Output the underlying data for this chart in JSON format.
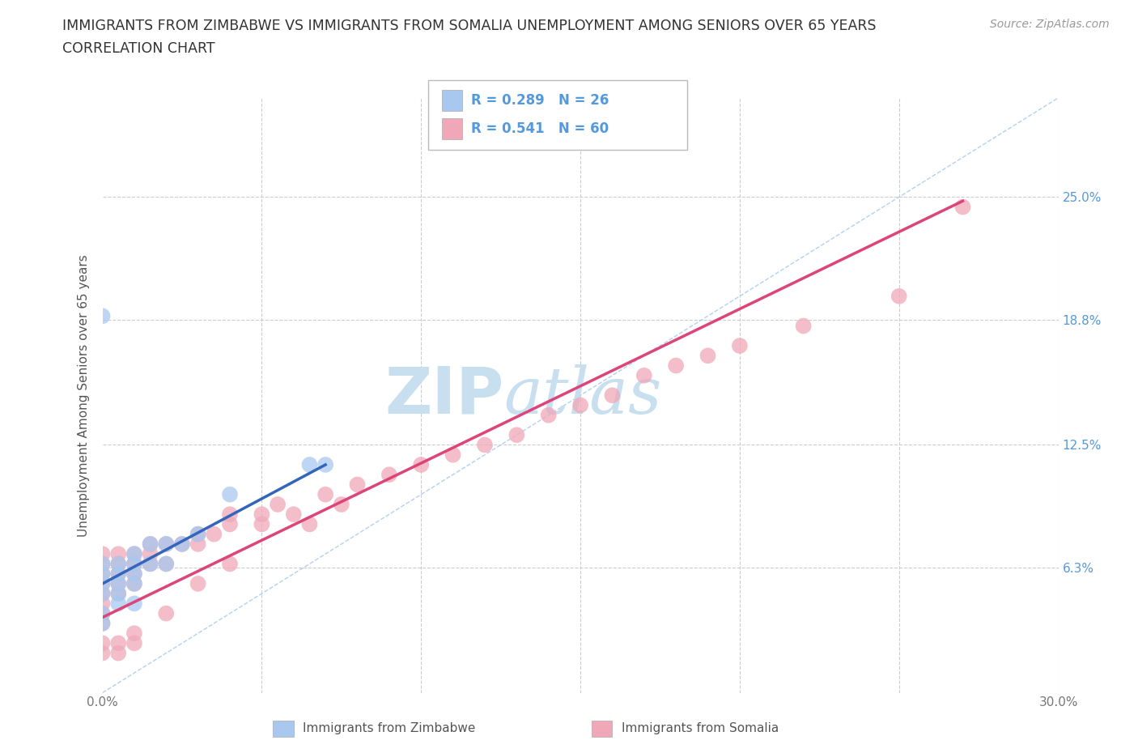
{
  "title_line1": "IMMIGRANTS FROM ZIMBABWE VS IMMIGRANTS FROM SOMALIA UNEMPLOYMENT AMONG SENIORS OVER 65 YEARS",
  "title_line2": "CORRELATION CHART",
  "source_text": "Source: ZipAtlas.com",
  "ylabel": "Unemployment Among Seniors over 65 years",
  "xlim": [
    0.0,
    0.3
  ],
  "ylim": [
    0.0,
    0.3
  ],
  "ytick_values": [
    0.0,
    0.063,
    0.125,
    0.188,
    0.25
  ],
  "ytick_labels_right": [
    "",
    "6.3%",
    "12.5%",
    "18.8%",
    "25.0%"
  ],
  "xtick_positions": [
    0.0,
    0.05,
    0.1,
    0.15,
    0.2,
    0.25,
    0.3
  ],
  "xtick_labels": [
    "0.0%",
    "",
    "",
    "",
    "",
    "",
    "30.0%"
  ],
  "grid_color": "#cccccc",
  "watermark_zip": "ZIP",
  "watermark_atlas": "atlas",
  "watermark_color": "#c8dff0",
  "legend_r1": "R = 0.289",
  "legend_n1": "N = 26",
  "legend_r2": "R = 0.541",
  "legend_n2": "N = 60",
  "color_zimbabwe": "#a8c8f0",
  "color_somalia": "#f0a8b8",
  "line_color_zimbabwe": "#3366bb",
  "line_color_somalia": "#dd4477",
  "diagonal_color": "#aaccee",
  "tick_label_color": "#5599dd",
  "zimbabwe_x": [
    0.0,
    0.0,
    0.0,
    0.0,
    0.0,
    0.005,
    0.005,
    0.005,
    0.005,
    0.01,
    0.01,
    0.01,
    0.01,
    0.015,
    0.015,
    0.02,
    0.02,
    0.025,
    0.03,
    0.04,
    0.065,
    0.07,
    0.0,
    0.005,
    0.01,
    0.0
  ],
  "zimbabwe_y": [
    0.19,
    0.065,
    0.06,
    0.055,
    0.05,
    0.065,
    0.06,
    0.055,
    0.05,
    0.07,
    0.065,
    0.06,
    0.055,
    0.075,
    0.065,
    0.075,
    0.065,
    0.075,
    0.08,
    0.1,
    0.115,
    0.115,
    0.04,
    0.045,
    0.045,
    0.035
  ],
  "somalia_x": [
    0.0,
    0.0,
    0.0,
    0.0,
    0.0,
    0.0,
    0.0,
    0.0,
    0.005,
    0.005,
    0.005,
    0.005,
    0.005,
    0.01,
    0.01,
    0.01,
    0.01,
    0.015,
    0.015,
    0.015,
    0.02,
    0.02,
    0.025,
    0.03,
    0.03,
    0.035,
    0.04,
    0.04,
    0.05,
    0.05,
    0.055,
    0.06,
    0.065,
    0.07,
    0.075,
    0.08,
    0.09,
    0.1,
    0.11,
    0.12,
    0.13,
    0.14,
    0.15,
    0.16,
    0.17,
    0.18,
    0.19,
    0.2,
    0.22,
    0.25,
    0.27,
    0.0,
    0.0,
    0.005,
    0.005,
    0.01,
    0.01,
    0.02,
    0.03,
    0.04
  ],
  "somalia_y": [
    0.07,
    0.065,
    0.06,
    0.055,
    0.05,
    0.045,
    0.04,
    0.035,
    0.07,
    0.065,
    0.06,
    0.055,
    0.05,
    0.07,
    0.065,
    0.06,
    0.055,
    0.075,
    0.07,
    0.065,
    0.075,
    0.065,
    0.075,
    0.08,
    0.075,
    0.08,
    0.09,
    0.085,
    0.09,
    0.085,
    0.095,
    0.09,
    0.085,
    0.1,
    0.095,
    0.105,
    0.11,
    0.115,
    0.12,
    0.125,
    0.13,
    0.14,
    0.145,
    0.15,
    0.16,
    0.165,
    0.17,
    0.175,
    0.185,
    0.2,
    0.245,
    0.025,
    0.02,
    0.025,
    0.02,
    0.03,
    0.025,
    0.04,
    0.055,
    0.065
  ],
  "zim_line_x": [
    0.0,
    0.07
  ],
  "zim_line_y": [
    0.055,
    0.115
  ],
  "som_line_x": [
    0.0,
    0.27
  ],
  "som_line_y": [
    0.038,
    0.248
  ]
}
